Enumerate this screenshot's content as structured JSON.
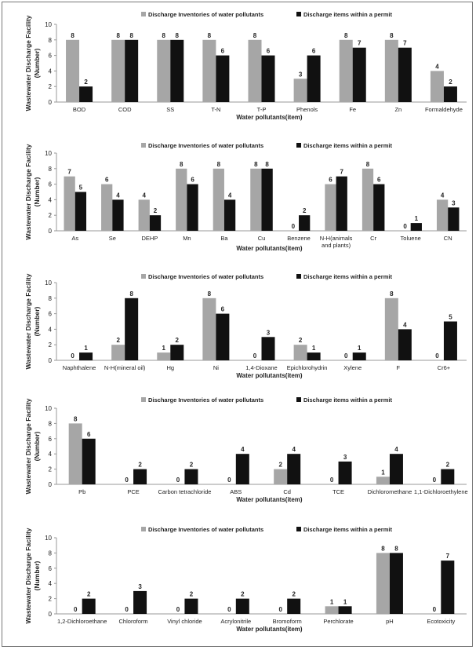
{
  "legend": {
    "gray_label": "Discharge Inventories of water pollutants",
    "black_label": "Discharge items within a permit"
  },
  "colors": {
    "gray": "#a6a6a6",
    "black": "#111111",
    "axis": "#999999",
    "text": "#222222"
  },
  "chart_data": [
    {
      "type": "bar",
      "ylabel": "Wastewater Discharge Facility (Number)",
      "xlabel": "Water pollutants(item)",
      "ylim": [
        0,
        10
      ],
      "yticks": [
        0,
        2,
        4,
        6,
        8,
        10
      ],
      "grid": false,
      "legend_position": "top",
      "categories": [
        "BOD",
        "COD",
        "SS",
        "T-N",
        "T-P",
        "Phenols",
        "Fe",
        "Zn",
        "Formaldehyde"
      ],
      "series": [
        {
          "name": "Discharge Inventories of water pollutants",
          "values": [
            8,
            8,
            8,
            8,
            8,
            3,
            8,
            8,
            4
          ]
        },
        {
          "name": "Discharge items within a permit",
          "values": [
            2,
            8,
            8,
            6,
            6,
            6,
            7,
            7,
            2
          ]
        }
      ]
    },
    {
      "type": "bar",
      "ylabel": "Wastewater Discharge Facility (Number)",
      "xlabel": "Water pollutants(item)",
      "ylim": [
        0,
        10
      ],
      "yticks": [
        0,
        2,
        4,
        6,
        8,
        10
      ],
      "grid": false,
      "legend_position": "top",
      "categories": [
        "As",
        "Se",
        "DEHP",
        "Mn",
        "Ba",
        "Cu",
        "Benzene",
        "N-H(animals and plants)",
        "Cr",
        "Toluene",
        "CN"
      ],
      "series": [
        {
          "name": "Discharge Inventories of water pollutants",
          "values": [
            7,
            6,
            4,
            8,
            8,
            8,
            0,
            6,
            8,
            0,
            4
          ]
        },
        {
          "name": "Discharge items within a permit",
          "values": [
            5,
            4,
            2,
            6,
            4,
            8,
            2,
            7,
            6,
            1,
            3
          ]
        }
      ]
    },
    {
      "type": "bar",
      "ylabel": "Wastewater Discharge Facility (Number)",
      "xlabel": "Water pollutants(item)",
      "ylim": [
        0,
        10
      ],
      "yticks": [
        0,
        2,
        4,
        6,
        8,
        10
      ],
      "grid": false,
      "legend_position": "top",
      "categories": [
        "Naphthalene",
        "N-H(mineral oil)",
        "Hg",
        "Ni",
        "1,4-Dioxane",
        "Epichlorohydrin",
        "Xylene",
        "F",
        "Cr6+"
      ],
      "series": [
        {
          "name": "Discharge Inventories of water pollutants",
          "values": [
            0,
            2,
            1,
            8,
            0,
            2,
            0,
            8,
            0
          ]
        },
        {
          "name": "Discharge items within a permit",
          "values": [
            1,
            8,
            2,
            6,
            3,
            1,
            1,
            4,
            5
          ]
        }
      ]
    },
    {
      "type": "bar",
      "ylabel": "Wastewater Discharge Facility (Number)",
      "xlabel": "Water pollutants(item)",
      "ylim": [
        0,
        10
      ],
      "yticks": [
        0,
        2,
        4,
        6,
        8,
        10
      ],
      "grid": false,
      "legend_position": "top",
      "categories": [
        "Pb",
        "PCE",
        "Carbon tetrachloride",
        "ABS",
        "Cd",
        "TCE",
        "Dichloromethane",
        "1,1-Dichloroethylene"
      ],
      "series": [
        {
          "name": "Discharge Inventories of water pollutants",
          "values": [
            8,
            0,
            0,
            0,
            2,
            0,
            1,
            0
          ]
        },
        {
          "name": "Discharge items within a permit",
          "values": [
            6,
            2,
            2,
            4,
            4,
            3,
            4,
            2
          ]
        }
      ]
    },
    {
      "type": "bar",
      "ylabel": "Wastewater Discharge Facility (Number)",
      "xlabel": "Water pollutants(item)",
      "ylim": [
        0,
        10
      ],
      "yticks": [
        0,
        2,
        4,
        6,
        8,
        10
      ],
      "grid": false,
      "legend_position": "top",
      "categories": [
        "1,2-Dichloroethane",
        "Chloroform",
        "Vinyl chloride",
        "Acrylonitrile",
        "Bromoform",
        "Perchlorate",
        "pH",
        "Ecotoxicity"
      ],
      "series": [
        {
          "name": "Discharge Inventories of water pollutants",
          "values": [
            0,
            0,
            0,
            0,
            0,
            1,
            8,
            0
          ]
        },
        {
          "name": "Discharge items within a permit",
          "values": [
            2,
            3,
            2,
            2,
            2,
            1,
            8,
            7
          ]
        }
      ]
    }
  ]
}
